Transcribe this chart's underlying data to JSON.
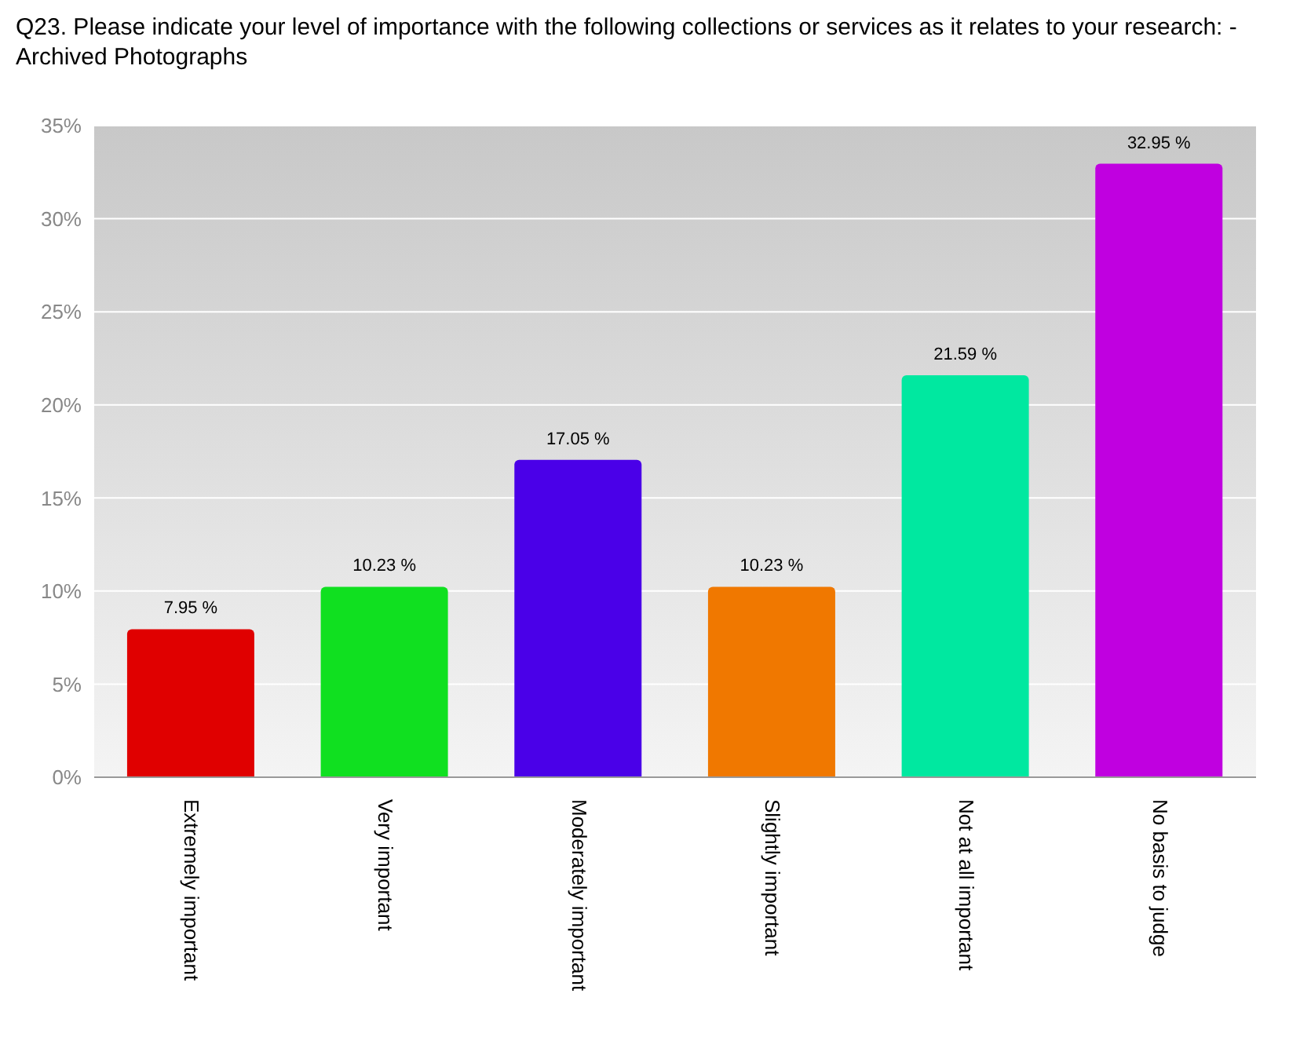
{
  "chart_data": {
    "type": "bar",
    "title": "Q23. Please indicate your level of importance with the following collections or services as it relates to your research: -  Archived Photographs",
    "categories": [
      "Extremely important",
      "Very important",
      "Moderately important",
      "Slightly important",
      "Not at all important",
      "No basis to judge"
    ],
    "values": [
      7.95,
      10.23,
      17.05,
      10.23,
      21.59,
      32.95
    ],
    "colors": [
      "#e00000",
      "#10e020",
      "#4a00e8",
      "#f07800",
      "#00e8a0",
      "#c000e0"
    ],
    "value_labels": [
      "7.95 %",
      "10.23 %",
      "17.05 %",
      "10.23 %",
      "21.59 %",
      "32.95 %"
    ],
    "ylim": [
      0,
      35
    ],
    "yticks": [
      {
        "value": 0,
        "label": "0%"
      },
      {
        "value": 5,
        "label": "5%"
      },
      {
        "value": 10,
        "label": "10%"
      },
      {
        "value": 15,
        "label": "15%"
      },
      {
        "value": 20,
        "label": "20%"
      },
      {
        "value": 25,
        "label": "25%"
      },
      {
        "value": 30,
        "label": "30%"
      },
      {
        "value": 35,
        "label": "35%"
      }
    ],
    "grid": "y"
  }
}
